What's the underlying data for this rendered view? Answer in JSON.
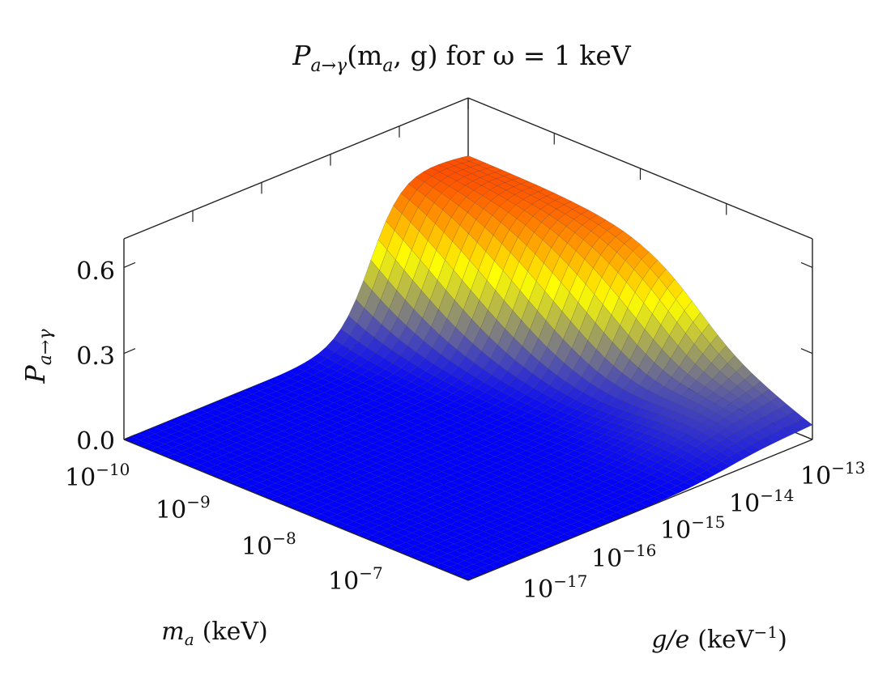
{
  "chart_data": {
    "type": "surface",
    "title": {
      "prob_symbol": "P",
      "prob_sub": "a→γ",
      "args": "(m",
      "args_sub": "a",
      "args_rest": ", g)",
      "for_text": "for",
      "omega": "ω = 1 keV"
    },
    "zlabel": {
      "symbol": "P",
      "sub": "a→γ"
    },
    "xlabel": {
      "symbol": "m",
      "sub": "a",
      "unit": "(keV)"
    },
    "ylabel": {
      "symbol": "g/e",
      "unit": "(keV",
      "unit_exp": "−1",
      "unit_close": ")"
    },
    "x_axis": {
      "quantity": "m_a (keV)",
      "scale": "log",
      "range": [
        1e-10,
        1e-06
      ],
      "ticks": [
        {
          "base": "10",
          "exp": "−10",
          "value": 1e-10
        },
        {
          "base": "10",
          "exp": "−9",
          "value": 1e-09
        },
        {
          "base": "10",
          "exp": "−8",
          "value": 1e-08
        },
        {
          "base": "10",
          "exp": "−7",
          "value": 1e-07
        }
      ]
    },
    "y_axis": {
      "quantity": "g/e (keV^-1)",
      "scale": "log",
      "range": [
        1e-18,
        1e-13
      ],
      "ticks": [
        {
          "base": "10",
          "exp": "−17",
          "value": 1e-17
        },
        {
          "base": "10",
          "exp": "−16",
          "value": 1e-16
        },
        {
          "base": "10",
          "exp": "−15",
          "value": 1e-15
        },
        {
          "base": "10",
          "exp": "−14",
          "value": 1e-14
        },
        {
          "base": "10",
          "exp": "−13",
          "value": 1e-13
        }
      ]
    },
    "z_axis": {
      "range": [
        0,
        0.7
      ],
      "ticks": [
        {
          "label": "0.0",
          "value": 0
        },
        {
          "label": "0.3",
          "value": 0.3
        },
        {
          "label": "0.6",
          "value": 0.6
        }
      ]
    },
    "colormap": [
      "#0000ff",
      "#ffff00",
      "#ff0000"
    ],
    "grid": false,
    "box": true
  }
}
